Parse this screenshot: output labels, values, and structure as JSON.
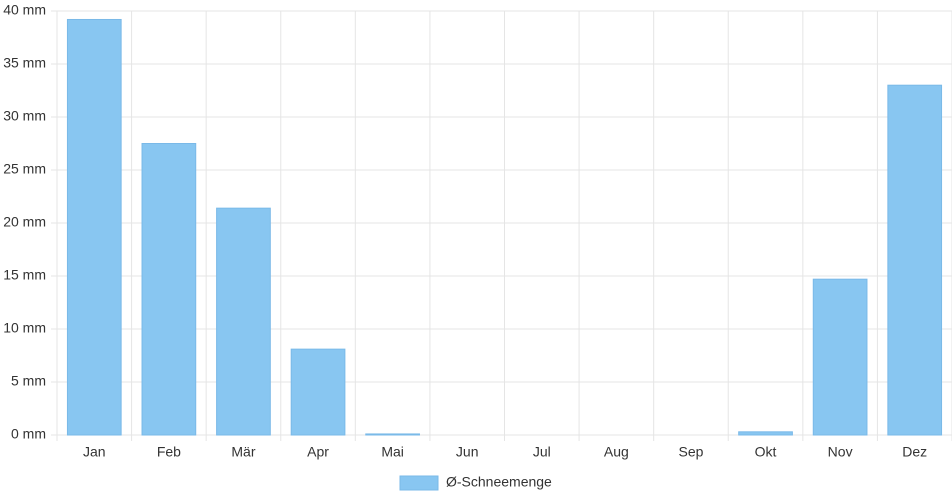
{
  "chart_data": {
    "type": "bar",
    "categories": [
      "Jan",
      "Feb",
      "Mär",
      "Apr",
      "Mai",
      "Jun",
      "Jul",
      "Aug",
      "Sep",
      "Okt",
      "Nov",
      "Dez"
    ],
    "series": [
      {
        "name": "Ø-Schneemenge",
        "color": "#88c6f1",
        "values": [
          39.2,
          27.5,
          21.4,
          8.1,
          0.1,
          0,
          0,
          0,
          0,
          0.3,
          14.7,
          33.0
        ]
      }
    ],
    "ylim": [
      0,
      40
    ],
    "yticks": [
      {
        "value": 0,
        "label": "0 mm"
      },
      {
        "value": 5,
        "label": "5 mm"
      },
      {
        "value": 10,
        "label": "10 mm"
      },
      {
        "value": 15,
        "label": "15 mm"
      },
      {
        "value": 20,
        "label": "20 mm"
      },
      {
        "value": 25,
        "label": "25 mm"
      },
      {
        "value": 30,
        "label": "30 mm"
      },
      {
        "value": 35,
        "label": "35 mm"
      },
      {
        "value": 40,
        "label": "40 mm"
      }
    ],
    "grid": true,
    "legend": "bottom"
  }
}
